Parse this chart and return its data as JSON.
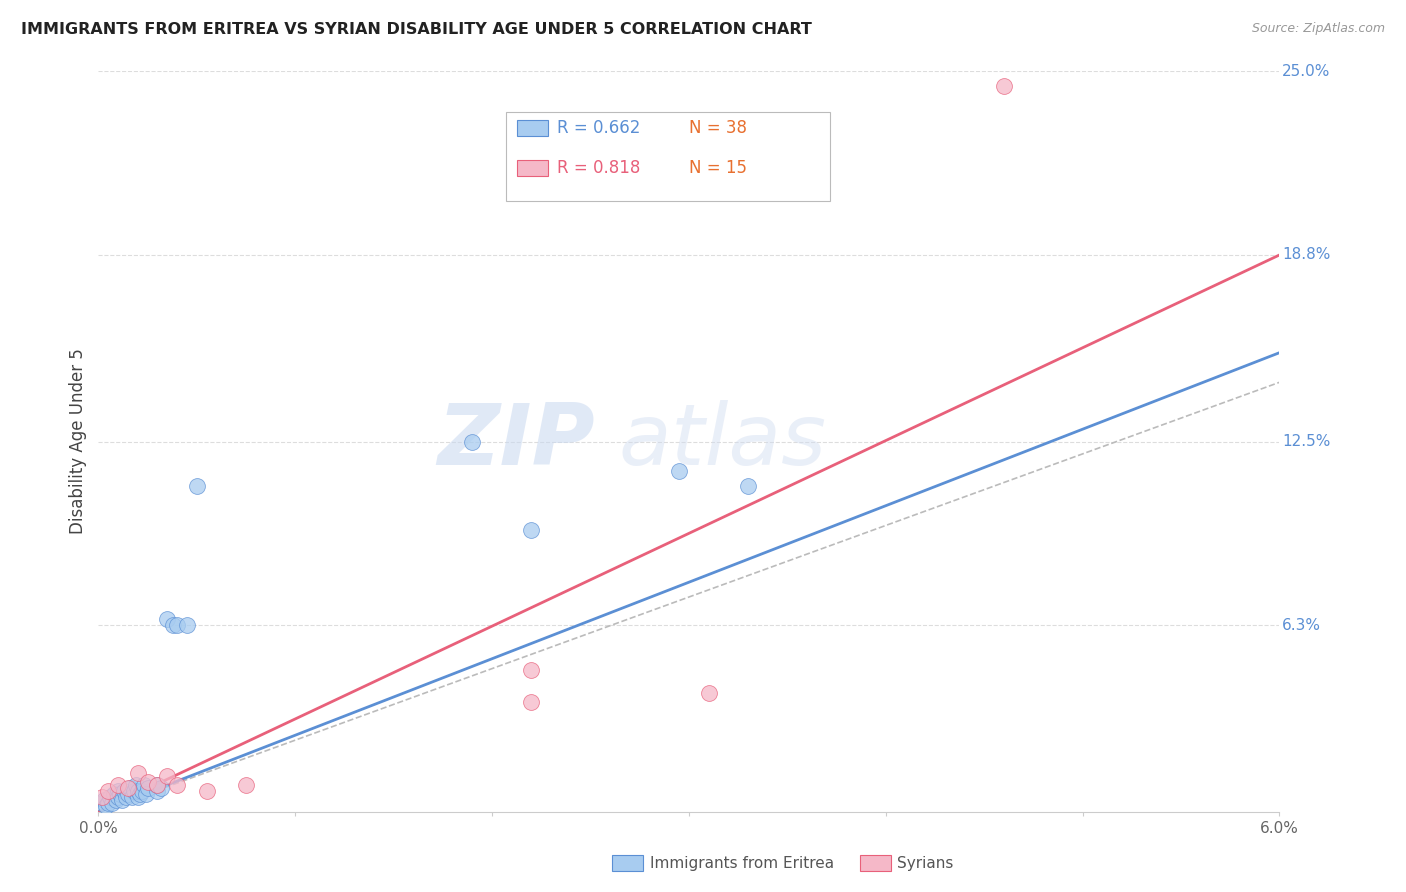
{
  "title": "IMMIGRANTS FROM ERITREA VS SYRIAN DISABILITY AGE UNDER 5 CORRELATION CHART",
  "source": "Source: ZipAtlas.com",
  "ylabel": "Disability Age Under 5",
  "xlim": [
    0.0,
    0.06
  ],
  "ylim": [
    0.0,
    0.25
  ],
  "legend_r_eritrea": "R = 0.662",
  "legend_n_eritrea": "N = 38",
  "legend_r_syrian": "R = 0.818",
  "legend_n_syrian": "N = 15",
  "eritrea_color": "#A8CCF0",
  "syrian_color": "#F5B8C8",
  "eritrea_line_color": "#5B8FD4",
  "syrian_line_color": "#E8607A",
  "dashed_line_color": "#BBBBBB",
  "watermark_zip": "ZIP",
  "watermark_atlas": "atlas",
  "background_color": "#FFFFFF",
  "grid_color": "#DDDDDD",
  "eritrea_x": [
    0.0002,
    0.0003,
    0.0004,
    0.0005,
    0.0006,
    0.0007,
    0.0008,
    0.0009,
    0.001,
    0.001,
    0.0011,
    0.0012,
    0.0013,
    0.0014,
    0.0015,
    0.0016,
    0.0017,
    0.0018,
    0.0019,
    0.002,
    0.002,
    0.0021,
    0.0022,
    0.0023,
    0.0024,
    0.0025,
    0.003,
    0.003,
    0.0032,
    0.0035,
    0.0038,
    0.004,
    0.0045,
    0.005,
    0.019,
    0.022,
    0.0295,
    0.033
  ],
  "eritrea_y": [
    0.003,
    0.004,
    0.002,
    0.003,
    0.005,
    0.003,
    0.006,
    0.004,
    0.007,
    0.005,
    0.006,
    0.004,
    0.007,
    0.005,
    0.006,
    0.008,
    0.005,
    0.007,
    0.009,
    0.005,
    0.007,
    0.006,
    0.007,
    0.009,
    0.006,
    0.008,
    0.007,
    0.009,
    0.008,
    0.065,
    0.063,
    0.063,
    0.063,
    0.11,
    0.125,
    0.095,
    0.115,
    0.11
  ],
  "syrian_x": [
    0.0002,
    0.0005,
    0.001,
    0.0015,
    0.002,
    0.0025,
    0.003,
    0.0035,
    0.004,
    0.0055,
    0.0075,
    0.022,
    0.022,
    0.031,
    0.046
  ],
  "syrian_y": [
    0.005,
    0.007,
    0.009,
    0.008,
    0.013,
    0.01,
    0.009,
    0.012,
    0.009,
    0.007,
    0.009,
    0.037,
    0.048,
    0.04,
    0.245
  ],
  "eritrea_trend": [
    0.0,
    0.0,
    0.06,
    0.155
  ],
  "syrian_trend": [
    0.0,
    0.0,
    0.06,
    0.188
  ],
  "dashed_trend": [
    0.0,
    0.0,
    0.06,
    0.145
  ]
}
